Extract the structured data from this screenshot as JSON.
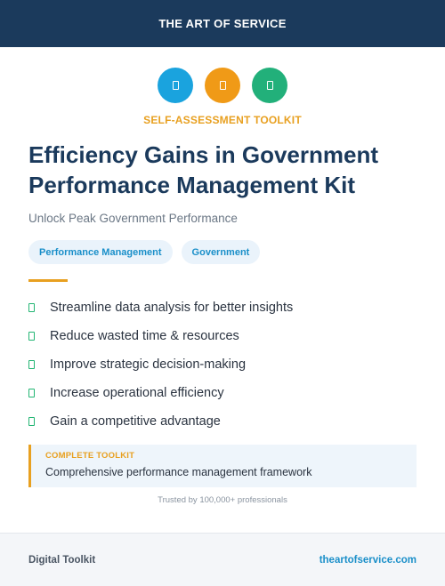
{
  "header": {
    "brand": "THE ART OF SERVICE",
    "background": "#1b3a5c"
  },
  "icons": [
    {
      "name": "document-icon",
      "color": "#1aa3de"
    },
    {
      "name": "document-icon",
      "color": "#f09a17"
    },
    {
      "name": "document-icon",
      "color": "#22b07a"
    }
  ],
  "eyebrow": "SELF-ASSESSMENT TOOLKIT",
  "title": "Efficiency Gains in Government Performance Management Kit",
  "subtitle": "Unlock Peak Government Performance",
  "tags": [
    "Performance Management",
    "Government"
  ],
  "features": [
    "Streamline data analysis for better insights",
    "Reduce wasted time & resources",
    "Improve strategic decision-making",
    "Increase operational efficiency",
    "Gain a competitive advantage"
  ],
  "callout": {
    "label": "COMPLETE TOOLKIT",
    "text": "Comprehensive performance management framework"
  },
  "trusted": "Trusted by 100,000+ professionals",
  "footer": {
    "left": "Digital Toolkit",
    "right": "theartofservice.com"
  },
  "colors": {
    "accent": "#e8a020",
    "link": "#1a8fc9",
    "check": "#22b573"
  }
}
